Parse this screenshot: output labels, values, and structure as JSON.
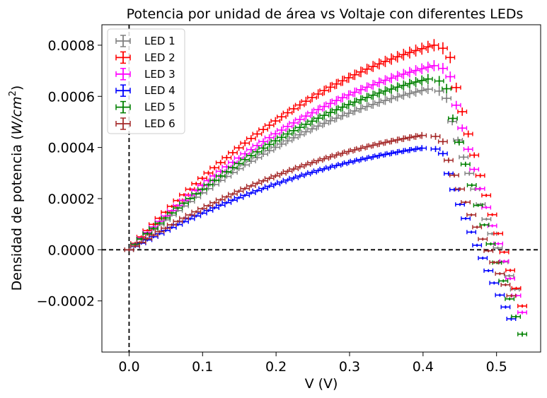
{
  "chart_data": {
    "type": "scatter",
    "title": "Potencia por unidad de área vs Voltaje con diferentes LEDs",
    "xlabel": "V (V)",
    "ylabel_prefix": "Densidad de potencia (",
    "ylabel_unit": "W/cm",
    "ylabel_sup": "2",
    "ylabel_suffix": ")",
    "xlim": [
      -0.037,
      0.56
    ],
    "ylim": [
      -0.0004,
      0.00088
    ],
    "x_ticks": [
      0.0,
      0.1,
      0.2,
      0.3,
      0.4,
      0.5
    ],
    "x_tick_labels": [
      "0.0",
      "0.1",
      "0.2",
      "0.3",
      "0.4",
      "0.5"
    ],
    "y_ticks": [
      -0.0002,
      0.0,
      0.0002,
      0.0004,
      0.0006,
      0.0008
    ],
    "y_tick_labels": [
      "−0.0002",
      "0.0000",
      "0.0002",
      "0.0004",
      "0.0006",
      "0.0008"
    ],
    "reference_lines": {
      "x": 0,
      "y": 0,
      "style": "dashed",
      "color": "#000000"
    },
    "legend_position": "top-left",
    "grid": false,
    "error_bars": true,
    "x_error": 0.006,
    "series": [
      {
        "name": "LED 1",
        "color": "#808080",
        "peak_x": 0.41,
        "peak_y": 0.00063,
        "zero_x": 0.505,
        "end_x": 0.525,
        "end_y": -0.000155
      },
      {
        "name": "LED 2",
        "color": "#ff0000",
        "peak_x": 0.415,
        "peak_y": 0.0008,
        "zero_x": 0.52,
        "end_x": 0.535,
        "end_y": -0.00022
      },
      {
        "name": "LED 3",
        "color": "#ff00ff",
        "peak_x": 0.415,
        "peak_y": 0.00072,
        "zero_x": 0.51,
        "end_x": 0.535,
        "end_y": -0.000245
      },
      {
        "name": "LED 4",
        "color": "#0000ff",
        "peak_x": 0.405,
        "peak_y": 0.0004,
        "zero_x": 0.495,
        "end_x": 0.52,
        "end_y": -0.00027
      },
      {
        "name": "LED 5",
        "color": "#008000",
        "peak_x": 0.41,
        "peak_y": 0.00067,
        "zero_x": 0.5,
        "end_x": 0.535,
        "end_y": -0.00033
      },
      {
        "name": "LED 6",
        "color": "#a52a2a",
        "peak_x": 0.405,
        "peak_y": 0.00045,
        "zero_x": 0.49,
        "end_x": 0.52,
        "end_y": -0.00018
      }
    ]
  }
}
